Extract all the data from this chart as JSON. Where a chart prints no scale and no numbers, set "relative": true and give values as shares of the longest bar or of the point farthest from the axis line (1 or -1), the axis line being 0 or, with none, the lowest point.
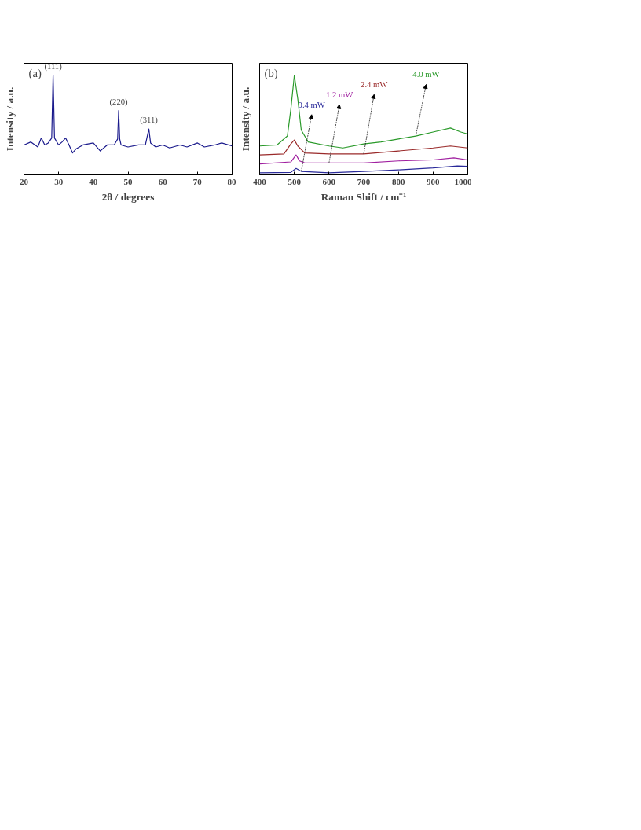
{
  "chart_data": [
    {
      "type": "line",
      "annotations": [
        "(a)",
        {
          "text": "(111)",
          "x": 28.4,
          "y": 1.0
        },
        {
          "text": "(220)",
          "x": 47.3,
          "y": 0.645
        },
        {
          "text": "(311)",
          "x": 56,
          "y": 0.46
        }
      ],
      "xlabel": "2θ / degrees",
      "ylabel": "Intensity / a.u.",
      "relative": true,
      "xlim": [
        20,
        80
      ],
      "xticks": [
        20,
        30,
        40,
        50,
        60,
        70,
        80
      ],
      "grid": false,
      "series": [
        {
          "color": "#1a1a8c",
          "x": [
            20,
            22,
            24,
            25,
            26,
            27,
            28,
            28.4,
            28.8,
            30,
            31,
            32,
            33,
            34,
            35,
            37,
            40,
            42,
            44,
            46,
            47,
            47.3,
            47.6,
            48,
            50,
            53,
            55,
            56,
            56.5,
            58,
            60,
            62,
            65,
            67,
            70,
            72,
            75,
            77,
            80
          ],
          "values": [
            0.3,
            0.33,
            0.28,
            0.37,
            0.3,
            0.32,
            0.37,
            1.0,
            0.37,
            0.3,
            0.33,
            0.37,
            0.3,
            0.22,
            0.26,
            0.3,
            0.32,
            0.24,
            0.3,
            0.3,
            0.36,
            0.645,
            0.36,
            0.3,
            0.28,
            0.3,
            0.3,
            0.46,
            0.32,
            0.28,
            0.3,
            0.27,
            0.3,
            0.28,
            0.32,
            0.28,
            0.3,
            0.32,
            0.29
          ]
        }
      ]
    },
    {
      "type": "line",
      "annotations": [
        "(b)"
      ],
      "xlabel": "Raman Shift / cm⁻¹",
      "ylabel": "Intensity / a.u.",
      "relative": true,
      "xlim": [
        400,
        1000
      ],
      "xticks": [
        400,
        500,
        600,
        700,
        800,
        900,
        1000
      ],
      "grid": false,
      "series": [
        {
          "name": "0.4 mW",
          "color": "#2a2a9a",
          "x": [
            400,
            490,
            505,
            520,
            600,
            700,
            800,
            900,
            970,
            1000
          ],
          "values": [
            0.02,
            0.025,
            0.065,
            0.035,
            0.02,
            0.035,
            0.05,
            0.07,
            0.09,
            0.086
          ]
        },
        {
          "name": "1.2 mW",
          "color": "#a020a0",
          "x": [
            400,
            490,
            505,
            515,
            530,
            600,
            700,
            800,
            900,
            960,
            1000
          ],
          "values": [
            0.11,
            0.13,
            0.2,
            0.14,
            0.12,
            0.12,
            0.12,
            0.14,
            0.15,
            0.17,
            0.15
          ]
        },
        {
          "name": "2.4 mW",
          "color": "#9a2a2a",
          "x": [
            400,
            470,
            490,
            500,
            510,
            530,
            600,
            700,
            800,
            900,
            950,
            1000
          ],
          "values": [
            0.2,
            0.21,
            0.31,
            0.35,
            0.29,
            0.22,
            0.21,
            0.21,
            0.24,
            0.27,
            0.29,
            0.27
          ]
        },
        {
          "name": "4.0 mW",
          "color": "#2a9a2a",
          "x": [
            400,
            450,
            480,
            490,
            500,
            510,
            520,
            540,
            600,
            640,
            700,
            750,
            800,
            850,
            900,
            950,
            980,
            1000
          ],
          "values": [
            0.29,
            0.3,
            0.39,
            0.66,
            1.0,
            0.76,
            0.45,
            0.33,
            0.29,
            0.27,
            0.31,
            0.33,
            0.36,
            0.39,
            0.43,
            0.47,
            0.43,
            0.41
          ]
        }
      ]
    }
  ]
}
